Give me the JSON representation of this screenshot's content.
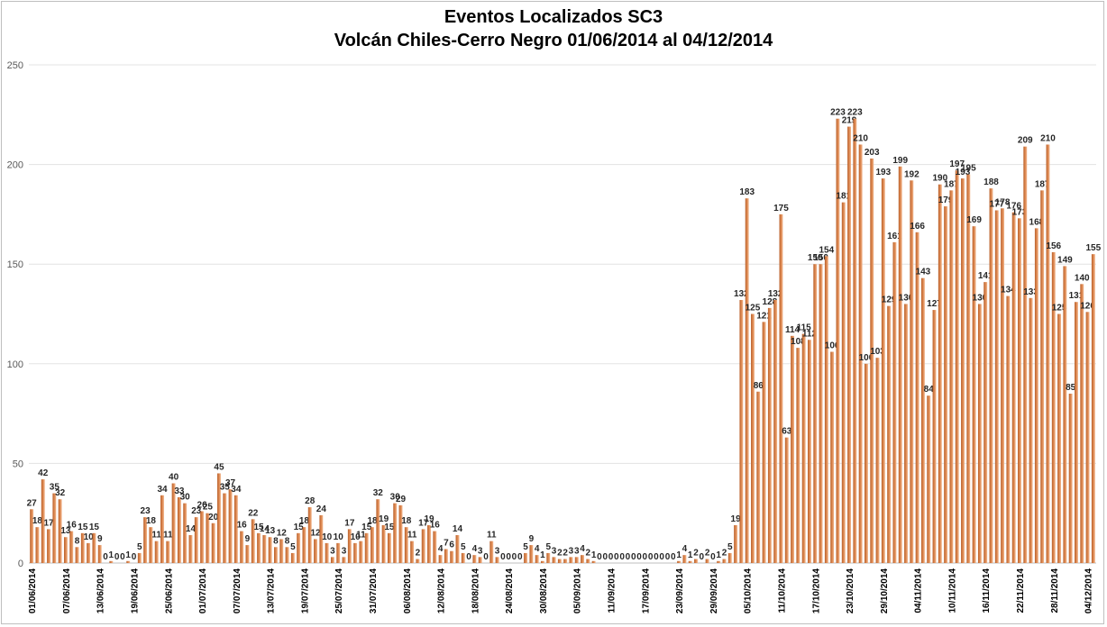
{
  "chart_data": {
    "type": "bar",
    "title": "Eventos Localizados SC3",
    "subtitle": "Volcán Chiles-Cerro Negro 01/06/2014 al 04/12/2014",
    "ylim": [
      0,
      250
    ],
    "yticks": [
      "0",
      "50",
      "100",
      "150",
      "200",
      "250"
    ],
    "grid": true,
    "bar_color": "#d9824a",
    "x_tick_labels": [
      "01/06/2014",
      "07/06/2014",
      "13/06/2014",
      "19/06/2014",
      "25/06/2014",
      "01/07/2014",
      "07/07/2014",
      "13/07/2014",
      "19/07/2014",
      "25/07/2014",
      "31/07/2014",
      "06/08/2014",
      "12/08/2014",
      "18/08/2014",
      "24/08/2014",
      "30/08/2014",
      "05/09/2014",
      "11/09/2014",
      "17/09/2014",
      "23/09/2014",
      "29/09/2014",
      "05/10/2014",
      "11/10/2014",
      "17/10/2014",
      "23/10/2014",
      "29/10/2014",
      "04/11/2014",
      "10/11/2014",
      "16/11/2014",
      "22/11/2014",
      "28/11/2014",
      "04/12/2014"
    ],
    "values": [
      27,
      18,
      42,
      17,
      35,
      32,
      13,
      16,
      8,
      15,
      10,
      15,
      9,
      0,
      1,
      0,
      0,
      1,
      0,
      5,
      23,
      18,
      11,
      34,
      11,
      40,
      33,
      30,
      14,
      23,
      26,
      25,
      20,
      45,
      35,
      37,
      34,
      16,
      9,
      22,
      15,
      14,
      13,
      8,
      12,
      8,
      5,
      15,
      18,
      28,
      12,
      24,
      10,
      3,
      10,
      3,
      17,
      10,
      11,
      15,
      18,
      32,
      19,
      15,
      30,
      29,
      18,
      11,
      2,
      17,
      19,
      16,
      4,
      7,
      6,
      14,
      5,
      0,
      4,
      3,
      0,
      11,
      3,
      0,
      0,
      0,
      0,
      5,
      9,
      4,
      1,
      5,
      3,
      2,
      2,
      3,
      3,
      4,
      2,
      1,
      0,
      0,
      0,
      0,
      0,
      0,
      0,
      0,
      0,
      0,
      0,
      0,
      0,
      0,
      1,
      4,
      1,
      2,
      0,
      2,
      0,
      1,
      2,
      5,
      19,
      132,
      183,
      125,
      86,
      121,
      128,
      132,
      175,
      63,
      114,
      108,
      115,
      112,
      150,
      150,
      154,
      106,
      223,
      181,
      219,
      223,
      210,
      100,
      203,
      103,
      193,
      129,
      161,
      199,
      130,
      192,
      166,
      143,
      84,
      127,
      190,
      179,
      187,
      197,
      193,
      195,
      169,
      130,
      141,
      188,
      177,
      178,
      134,
      176,
      173,
      209,
      133,
      168,
      187,
      210,
      156,
      125,
      149,
      85,
      131,
      140,
      126,
      155
    ]
  }
}
